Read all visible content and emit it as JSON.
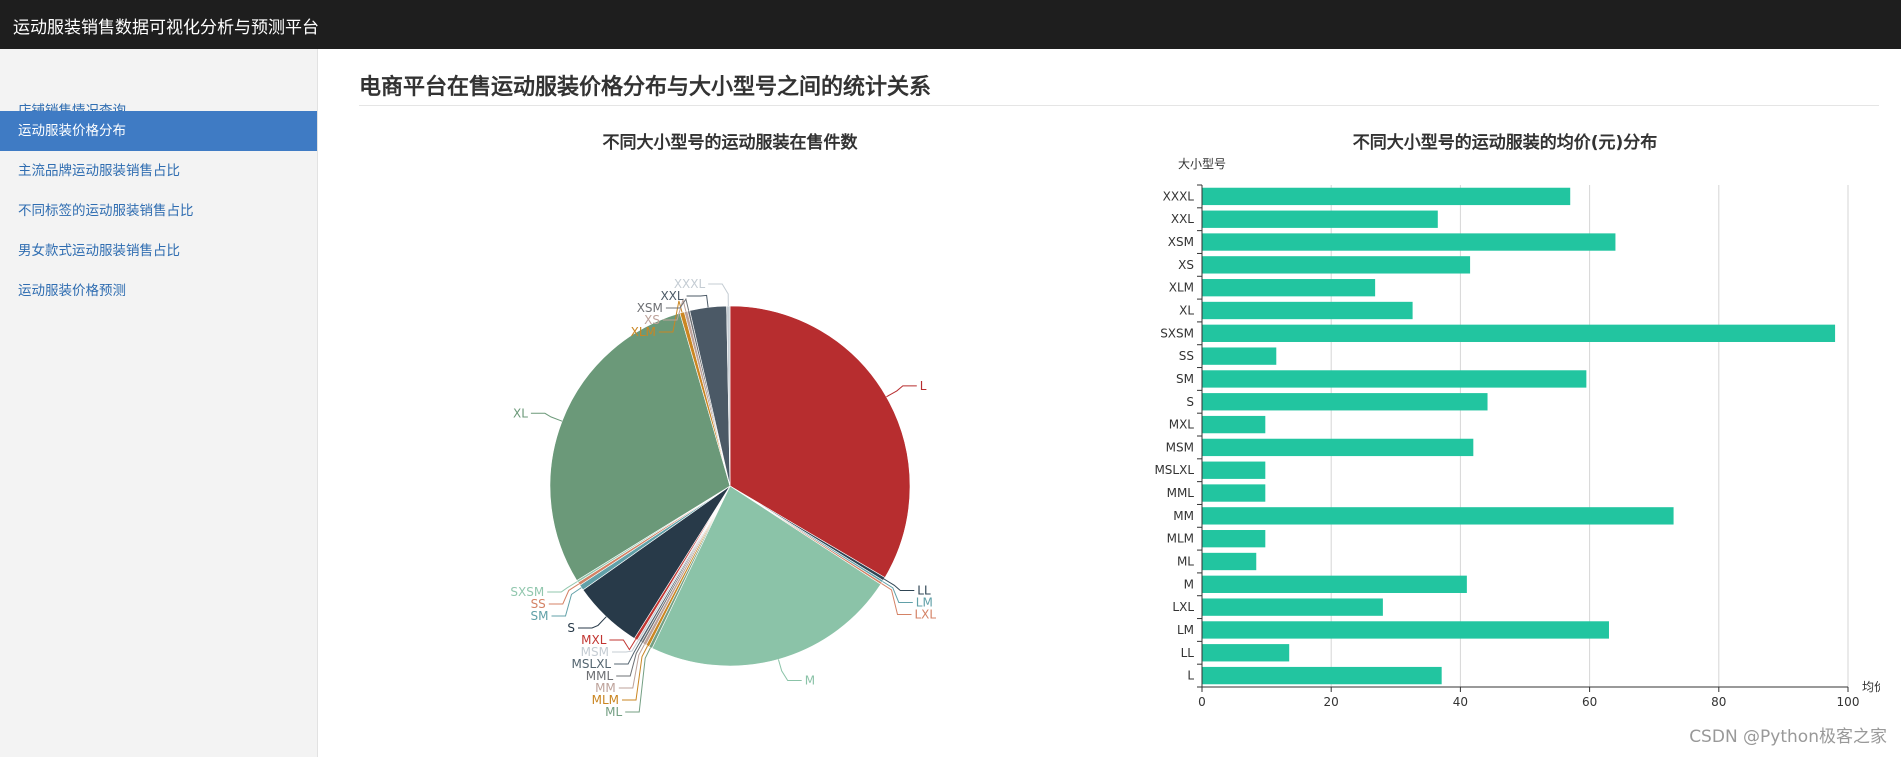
{
  "app": {
    "title": "运动服装销售数据可视化分析与预测平台"
  },
  "sidebar": {
    "items": [
      {
        "label": "店铺销售情况查询",
        "active": false
      },
      {
        "label": "运动服装价格分布",
        "active": true
      },
      {
        "label": "主流品牌运动服装销售占比",
        "active": false
      },
      {
        "label": "不同标签的运动服装销售占比",
        "active": false
      },
      {
        "label": "男女款式运动服装销售占比",
        "active": false
      },
      {
        "label": "运动服装价格预测",
        "active": false
      }
    ]
  },
  "main": {
    "page_title": "电商平台在售运动服装价格分布与大小型号之间的统计关系"
  },
  "watermark": "CSDN @Python极客之家",
  "chart_data": [
    {
      "type": "pie",
      "title": "不同大小型号的运动服装在售件数",
      "slices": [
        {
          "label": "L",
          "value": 33.6,
          "color": "#b72d2f"
        },
        {
          "label": "LL",
          "value": 0.3,
          "color": "#2f4554"
        },
        {
          "label": "LM",
          "value": 0.2,
          "color": "#61a0a8"
        },
        {
          "label": "LXL",
          "value": 0.2,
          "color": "#d48265"
        },
        {
          "label": "M",
          "value": 23.0,
          "color": "#8bc3a8"
        },
        {
          "label": "ML",
          "value": 0.3,
          "color": "#749f83"
        },
        {
          "label": "MLM",
          "value": 0.3,
          "color": "#ca8622"
        },
        {
          "label": "MM",
          "value": 0.3,
          "color": "#bda29a"
        },
        {
          "label": "MML",
          "value": 0.2,
          "color": "#6e7074"
        },
        {
          "label": "MSLXL",
          "value": 0.2,
          "color": "#546570"
        },
        {
          "label": "MSM",
          "value": 0.2,
          "color": "#c4ccd3"
        },
        {
          "label": "MXL",
          "value": 0.3,
          "color": "#c23531"
        },
        {
          "label": "S",
          "value": 6.3,
          "color": "#283a49"
        },
        {
          "label": "SM",
          "value": 0.5,
          "color": "#61a0a8"
        },
        {
          "label": "SS",
          "value": 0.3,
          "color": "#d48265"
        },
        {
          "label": "SXSM",
          "value": 0.2,
          "color": "#91c7ae"
        },
        {
          "label": "XL",
          "value": 29.4,
          "color": "#6b9979"
        },
        {
          "label": "XLM",
          "value": 0.4,
          "color": "#ca8622"
        },
        {
          "label": "XS",
          "value": 0.3,
          "color": "#bda29a"
        },
        {
          "label": "XSM",
          "value": 0.2,
          "color": "#6e7074"
        },
        {
          "label": "XXL",
          "value": 3.3,
          "color": "#4b5966"
        },
        {
          "label": "XXXL",
          "value": 0.3,
          "color": "#c4ccd3"
        }
      ]
    },
    {
      "type": "bar",
      "orientation": "horizontal",
      "title": "不同大小型号的运动服装的均价(元)分布",
      "ylabel": "大小型号",
      "xlabel": "均价",
      "categories": [
        "L",
        "LL",
        "LM",
        "LXL",
        "M",
        "ML",
        "MLM",
        "MM",
        "MML",
        "MSLXL",
        "MSM",
        "MXL",
        "S",
        "SM",
        "SS",
        "SXSM",
        "XL",
        "XLM",
        "XS",
        "XSM",
        "XXL",
        "XXXL"
      ],
      "values": [
        37.1,
        13.5,
        63,
        28,
        41,
        8.4,
        9.8,
        73,
        9.8,
        9.8,
        42,
        9.8,
        44.2,
        59.5,
        11.5,
        98,
        32.6,
        26.8,
        41.5,
        64,
        36.5,
        57
      ],
      "xlim": [
        0,
        100
      ],
      "xticks": [
        0,
        20,
        40,
        60,
        80,
        100
      ],
      "bar_color": "#22c5a0",
      "grid": true
    }
  ]
}
